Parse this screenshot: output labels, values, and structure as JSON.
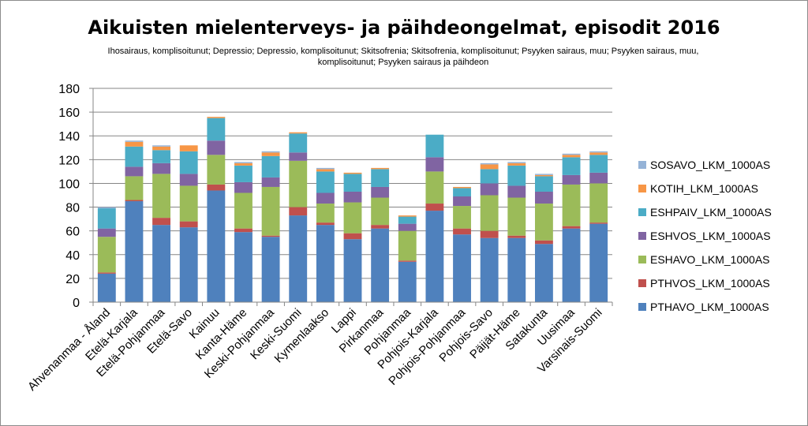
{
  "chart_data": {
    "type": "bar",
    "stacked": true,
    "title": "Aikuisten mielenterveys- ja päihdeongelmat, episodit 2016",
    "subtitle": "Ihosairaus, komplisoitunut; Depressio; Depressio, komplisoitunut; Skitsofrenia; Skitsofrenia, komplisoitunut; Psyyken sairaus, muu; Psyyken sairaus, muu, komplisoitunut; Psyyken sairaus ja päihdeon",
    "ylim": [
      0,
      180
    ],
    "yticks": [
      0,
      20,
      40,
      60,
      80,
      100,
      120,
      140,
      160,
      180
    ],
    "grid": true,
    "legend_position": "right",
    "categories": [
      "Ahvenanmaa - Åland",
      "Etelä-Karjala",
      "Etelä-Pohjanmaa",
      "Etelä-Savo",
      "Kainuu",
      "Kanta-Häme",
      "Keski-Pohjanmaa",
      "Keski-Suomi",
      "Kymenlaakso",
      "Lappi",
      "Pirkanmaa",
      "Pohjanmaa",
      "Pohjois-Karjala",
      "Pohjois-Pohjanmaa",
      "Pohjois-Savo",
      "Päijät-Häme",
      "Satakunta",
      "Uusimaa",
      "Varsinais-Suomi"
    ],
    "series": [
      {
        "name": "PTHAVO_LKM_1000AS",
        "color": "#4F81BD",
        "values": [
          24,
          85,
          65,
          63,
          94,
          59,
          55,
          73,
          65,
          53,
          62,
          34,
          77,
          57,
          54,
          54,
          49,
          62,
          66
        ]
      },
      {
        "name": "PTHVOS_LKM_1000AS",
        "color": "#C0504D",
        "values": [
          1,
          1,
          6,
          5,
          5,
          3,
          1,
          7,
          2,
          5,
          3,
          1,
          6,
          5,
          6,
          2,
          3,
          2,
          1
        ]
      },
      {
        "name": "ESHAVO_LKM_1000AS",
        "color": "#9BBB59",
        "values": [
          30,
          20,
          37,
          30,
          25,
          30,
          41,
          39,
          16,
          26,
          23,
          25,
          27,
          19,
          30,
          32,
          31,
          35,
          33
        ]
      },
      {
        "name": "ESHVOS_LKM_1000AS",
        "color": "#8064A2",
        "values": [
          7,
          8,
          9,
          10,
          12,
          9,
          8,
          7,
          9,
          9,
          9,
          6,
          12,
          8,
          10,
          10,
          10,
          8,
          9
        ]
      },
      {
        "name": "ESHPAIV_LKM_1000AS",
        "color": "#4BACC6",
        "values": [
          17,
          17,
          11,
          19,
          19,
          14,
          18,
          16,
          18,
          15,
          15,
          6,
          19,
          7,
          12,
          17,
          13,
          15,
          15
        ]
      },
      {
        "name": "KOTIH_LKM_1000AS",
        "color": "#F79646",
        "values": [
          0,
          4,
          3,
          5,
          1,
          2,
          3,
          1,
          2,
          1,
          1,
          1,
          0,
          1,
          4,
          2,
          1,
          2,
          2
        ]
      },
      {
        "name": "SOSAVO_LKM_1000AS",
        "color": "#95B3D7",
        "values": [
          1,
          1,
          1,
          0,
          0,
          1,
          1,
          0,
          1,
          0,
          0,
          0,
          0,
          0,
          1,
          1,
          1,
          1,
          1
        ]
      }
    ]
  }
}
